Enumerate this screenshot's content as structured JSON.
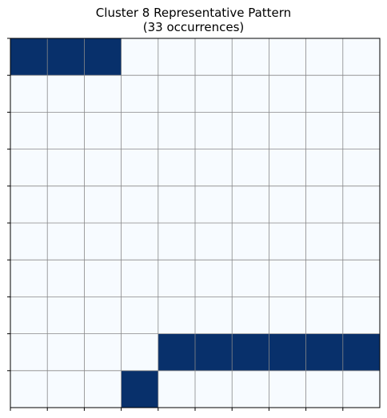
{
  "chart_data": {
    "type": "heatmap",
    "title": "Cluster 8 Representative Pattern",
    "subtitle": "(33 occurrences)",
    "xlabel": "",
    "ylabel": "",
    "rows": 10,
    "cols": 10,
    "grid": true,
    "tick_labels": false,
    "colors": {
      "on": "#08306b",
      "off": "#f7fbff",
      "grid": "#888888",
      "frame": "#000000"
    },
    "values": [
      [
        1,
        1,
        1,
        0,
        0,
        0,
        0,
        0,
        0,
        0
      ],
      [
        0,
        0,
        0,
        0,
        0,
        0,
        0,
        0,
        0,
        0
      ],
      [
        0,
        0,
        0,
        0,
        0,
        0,
        0,
        0,
        0,
        0
      ],
      [
        0,
        0,
        0,
        0,
        0,
        0,
        0,
        0,
        0,
        0
      ],
      [
        0,
        0,
        0,
        0,
        0,
        0,
        0,
        0,
        0,
        0
      ],
      [
        0,
        0,
        0,
        0,
        0,
        0,
        0,
        0,
        0,
        0
      ],
      [
        0,
        0,
        0,
        0,
        0,
        0,
        0,
        0,
        0,
        0
      ],
      [
        0,
        0,
        0,
        0,
        0,
        0,
        0,
        0,
        0,
        0
      ],
      [
        0,
        0,
        0,
        0,
        1,
        1,
        1,
        1,
        1,
        1
      ],
      [
        0,
        0,
        0,
        1,
        0,
        0,
        0,
        0,
        0,
        0
      ]
    ]
  }
}
